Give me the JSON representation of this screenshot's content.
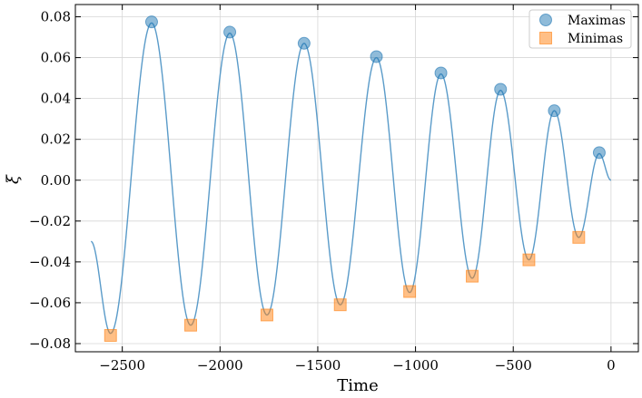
{
  "chart_data": {
    "type": "line",
    "title": "",
    "xlabel": "Time",
    "ylabel": "ξ",
    "xlim": [
      -2740,
      140
    ],
    "ylim": [
      -0.084,
      0.086
    ],
    "x_ticks": [
      -2500,
      -2000,
      -1500,
      -1000,
      -500,
      0
    ],
    "x_tick_labels": [
      "−2500",
      "−2000",
      "−1500",
      "−1000",
      "−500",
      "0"
    ],
    "y_ticks": [
      -0.08,
      -0.06,
      -0.04,
      -0.02,
      0.0,
      0.02,
      0.04,
      0.06,
      0.08
    ],
    "y_tick_labels": [
      "−0.08",
      "−0.06",
      "−0.04",
      "−0.02",
      "0.00",
      "0.02",
      "0.04",
      "0.06",
      "0.08"
    ],
    "grid": true,
    "legend_position": "top-right",
    "colors": {
      "signal": "#5a9bc9",
      "maxima": "#1f77b4",
      "minima": "#ff7f0e"
    },
    "signal": {
      "x": [
        -2660,
        -2560,
        -2350,
        -2150,
        -1950,
        -1760,
        -1570,
        -1385,
        -1200,
        -1030,
        -870,
        -710,
        -565,
        -420,
        -290,
        -165,
        -60,
        0
      ],
      "y": [
        -0.03,
        -0.075,
        0.077,
        -0.071,
        0.072,
        -0.066,
        0.067,
        -0.061,
        0.06,
        -0.055,
        0.052,
        -0.048,
        0.044,
        -0.039,
        0.034,
        -0.028,
        0.013,
        0.0
      ]
    },
    "series": [
      {
        "name": "Maximas",
        "marker": "circle",
        "x": [
          -2350,
          -1950,
          -1570,
          -1200,
          -870,
          -565,
          -290,
          -60
        ],
        "y": [
          0.0775,
          0.0725,
          0.067,
          0.0605,
          0.0525,
          0.0445,
          0.034,
          0.0135
        ]
      },
      {
        "name": "Minimas",
        "marker": "square",
        "x": [
          -2560,
          -2150,
          -1760,
          -1385,
          -1030,
          -710,
          -420,
          -165
        ],
        "y": [
          -0.076,
          -0.071,
          -0.066,
          -0.061,
          -0.0545,
          -0.047,
          -0.039,
          -0.028
        ]
      }
    ]
  }
}
